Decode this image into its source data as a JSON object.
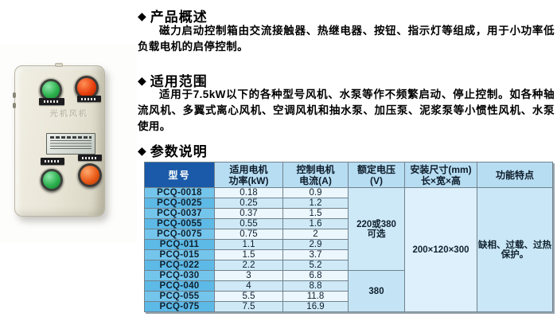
{
  "page": {
    "bullet": "◆",
    "sections": {
      "overview": {
        "heading": "产品概述",
        "body": "磁力启动控制箱由交流接触器、热继电器、按钮、指示灯等组成，用于小功率低负载电机的启停控制。"
      },
      "scope": {
        "heading": "适用范围",
        "body": "适用于7.5kW以下的各种型号风机、水泵等作不频繁启动、停止控制。如各种轴流风机、多翼式离心风机、空调风机和抽水泵、加压泵、泥浆泵等小惯性风机、水泵使用。"
      },
      "parameters": {
        "heading": "参数说明"
      }
    }
  },
  "device": {
    "embossed_text": "光机风机"
  },
  "table": {
    "columns": [
      "型号",
      "适用电机\n功率(kW)",
      "控制电机\n电流(A)",
      "额定电压\n(V)",
      "安装尺寸(mm)\n长×宽×高",
      "功能特点"
    ],
    "rows": [
      [
        "PCQ-0018",
        "0.18",
        "0.9"
      ],
      [
        "PCQ-0025",
        "0.25",
        "1.2"
      ],
      [
        "PCQ-0037",
        "0.37",
        "1.5"
      ],
      [
        "PCQ-0055",
        "0.55",
        "1.6"
      ],
      [
        "PCQ-0075",
        "0.75",
        "2"
      ],
      [
        "PCQ-011",
        "1.1",
        "2.9"
      ],
      [
        "PCQ-015",
        "1.5",
        "3.7"
      ],
      [
        "PCQ-022",
        "2.2",
        "5.2"
      ],
      [
        "PCQ-030",
        "3",
        "6.8"
      ],
      [
        "PCQ-040",
        "4",
        "8.8"
      ],
      [
        "PCQ-055",
        "5.5",
        "11.8"
      ],
      [
        "PCQ-075",
        "7.5",
        "16.9"
      ]
    ],
    "voltage_groups": [
      {
        "label": "220或380\n可选",
        "span": 8
      },
      {
        "label": "380",
        "span": 4
      }
    ],
    "dimensions": "200×120×300",
    "features": "缺相、过载、过热保护。"
  },
  "colors": {
    "header_blue": "#1a5aa8",
    "header_light_blue": "#b7ddf2",
    "model_col_odd": "#74c5ec",
    "model_col_even": "#5db9e6",
    "row_odd": "#ebf6fd",
    "row_even": "#cfe9f7",
    "table_border": "#70828e",
    "button_green": "#2db14e",
    "button_red": "#e73e0c",
    "button_orange": "#ea5a17",
    "box_beige": "#eae7d9"
  }
}
